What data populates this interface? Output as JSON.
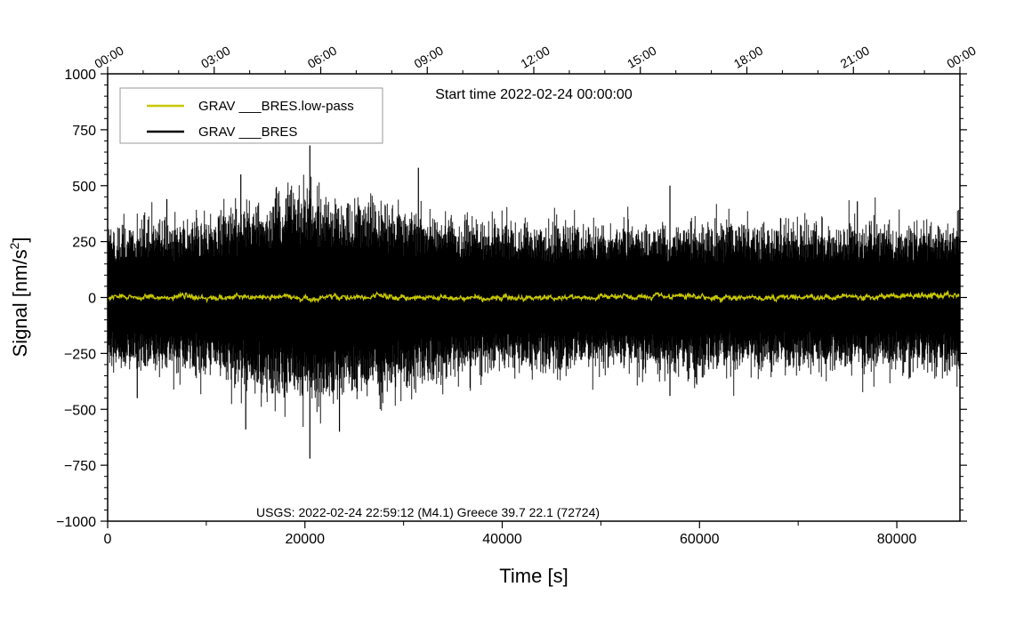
{
  "chart_data": {
    "type": "line",
    "title": "",
    "start_time_label": "Start time 2022-02-24 00:00:00",
    "xlabel": "Time [s]",
    "ylabel_main": "Signal [nm/s",
    "ylabel_sup": "2",
    "ylabel_tail": "]",
    "xlim": [
      0,
      86400
    ],
    "ylim": [
      -1000,
      1000
    ],
    "x_ticks": [
      0,
      20000,
      40000,
      60000,
      80000
    ],
    "x_tick_labels": [
      "0",
      "20000",
      "40000",
      "60000",
      "80000"
    ],
    "y_ticks": [
      1000,
      750,
      500,
      250,
      0,
      -250,
      -500,
      -750,
      -1000
    ],
    "y_tick_labels": [
      "1000",
      "750",
      "500",
      "250",
      "0",
      "−250",
      "−500",
      "−750",
      "−1000"
    ],
    "top_time_ticks": [
      0,
      10800,
      21600,
      32400,
      43200,
      54000,
      64800,
      75600,
      86400
    ],
    "top_time_labels": [
      "00:00",
      "03:00",
      "06:00",
      "09:00",
      "12:00",
      "15:00",
      "18:00",
      "21:00",
      "00:00"
    ],
    "annotation": "USGS: 2022-02-24 22:59:12 (M4.1) Greece 39.7 22.1 (72724)",
    "legend_position": "top-left",
    "series": [
      {
        "name": "GRAV ___BRES.low-pass",
        "color": "#c8c800",
        "typical_amplitude": 12
      },
      {
        "name": "GRAV ___BRES",
        "color": "#000000",
        "envelope": {
          "x": [
            0,
            4000,
            8000,
            12000,
            16000,
            20000,
            24000,
            28000,
            32000,
            36000,
            40000,
            44000,
            48000,
            52000,
            56000,
            60000,
            64000,
            68000,
            72000,
            76000,
            80000,
            84000,
            86400
          ],
          "upper": [
            300,
            330,
            330,
            380,
            430,
            480,
            430,
            420,
            380,
            340,
            340,
            330,
            320,
            320,
            340,
            330,
            340,
            320,
            330,
            330,
            330,
            320,
            350
          ],
          "lower": [
            -300,
            -330,
            -330,
            -380,
            -430,
            -480,
            -430,
            -420,
            -380,
            -340,
            -340,
            -330,
            -320,
            -320,
            -340,
            -330,
            -340,
            -320,
            -330,
            -330,
            -330,
            -320,
            -350
          ]
        },
        "peaks": [
          {
            "x": 20500,
            "y": 680
          },
          {
            "x": 20500,
            "y": -720
          },
          {
            "x": 13500,
            "y": 550
          },
          {
            "x": 14000,
            "y": -590
          },
          {
            "x": 31500,
            "y": 580
          },
          {
            "x": 23500,
            "y": -600
          },
          {
            "x": 57000,
            "y": 500
          },
          {
            "x": 57000,
            "y": -440
          },
          {
            "x": 76000,
            "y": 430
          },
          {
            "x": 6000,
            "y": 440
          },
          {
            "x": 3000,
            "y": -450
          }
        ]
      }
    ]
  }
}
